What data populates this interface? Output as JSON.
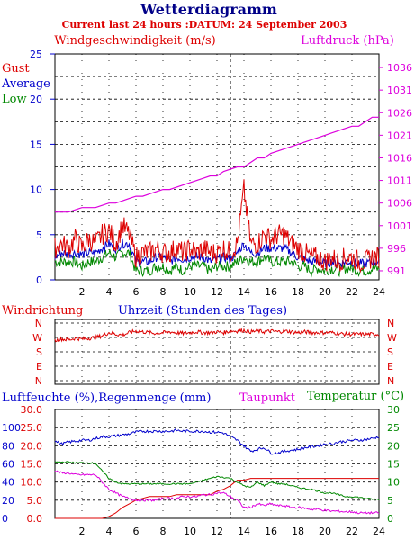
{
  "chart_data": [
    {
      "type": "line",
      "title": "Wetterdiagramm",
      "subtitle": "Current last 24 hours :DATUM: 24 September 2003",
      "ylabel_left": "Windgeschwindigkeit (m/s)",
      "ylabel_right": "Luftdruck (hPa)",
      "xlim": [
        0,
        24
      ],
      "ylim_left": [
        0,
        25
      ],
      "ylim_right": [
        989,
        1039
      ],
      "left_ticks": [
        "0",
        "5",
        "10",
        "15",
        "20",
        "25"
      ],
      "right_ticks": [
        "991",
        "996",
        "1001",
        "1006",
        "1011",
        "1016",
        "1021",
        "1026",
        "1031",
        "1036"
      ],
      "legend": [
        "Gust",
        "Average",
        "Low"
      ],
      "colors": {
        "gust": "#dd0000",
        "average": "#0000cc",
        "low": "#008800",
        "pressure": "#dd00dd"
      },
      "x": [
        0,
        0.5,
        1,
        1.5,
        2,
        2.5,
        3,
        3.5,
        4,
        4.5,
        5,
        5.5,
        6,
        6.5,
        7,
        7.5,
        8,
        8.5,
        9,
        9.5,
        10,
        10.5,
        11,
        11.5,
        12,
        12.5,
        13,
        13.5,
        14,
        14.5,
        15,
        15.5,
        16,
        16.5,
        17,
        17.5,
        18,
        18.5,
        19,
        19.5,
        20,
        20.5,
        21,
        21.5,
        22,
        22.5,
        23,
        23.5,
        24
      ],
      "series": [
        {
          "name": "Gust",
          "values": [
            3.5,
            4,
            3.5,
            4.5,
            3.5,
            4.5,
            4,
            5,
            5.5,
            4,
            6,
            5,
            2.5,
            3,
            3,
            3.5,
            3,
            3,
            3.5,
            3,
            3.5,
            3,
            3.5,
            3,
            3,
            3.5,
            3,
            4,
            10,
            4,
            4,
            5,
            4.5,
            5,
            5,
            4,
            3.5,
            3,
            2.5,
            2.5,
            2,
            2.5,
            2,
            2.5,
            2.5,
            2,
            2,
            2.5,
            2.5
          ]
        },
        {
          "name": "Average",
          "values": [
            2.5,
            3,
            2.8,
            3,
            2.8,
            3,
            3,
            3.5,
            4,
            3.5,
            4,
            4,
            2,
            2,
            2,
            2.5,
            2.5,
            2,
            2.5,
            2.3,
            2.5,
            2.5,
            2.5,
            2,
            2.3,
            2.5,
            2.3,
            3,
            4,
            3,
            3,
            3.5,
            3.5,
            3.5,
            3.5,
            3,
            2.5,
            2.3,
            2,
            2,
            1.8,
            2,
            1.8,
            2,
            2,
            1.8,
            1.8,
            2,
            2
          ]
        },
        {
          "name": "Low",
          "values": [
            2,
            2,
            2,
            2,
            1.5,
            2,
            2,
            2.5,
            3,
            2.5,
            3,
            3,
            1,
            1,
            1,
            1.5,
            1.5,
            1,
            1.5,
            1,
            1.5,
            1.5,
            1.5,
            1,
            1.5,
            1.5,
            1.5,
            2,
            2.5,
            2,
            2,
            2.5,
            2,
            2,
            2,
            2,
            1.5,
            1.5,
            1,
            1.3,
            1,
            1.3,
            1,
            1.3,
            1.3,
            1,
            1,
            1.2,
            1.2
          ]
        },
        {
          "name": "Luftdruck",
          "values": [
            1004,
            1004,
            1004,
            1004.5,
            1005,
            1005,
            1005,
            1005.5,
            1006,
            1006,
            1006.5,
            1007,
            1007.5,
            1007.5,
            1008,
            1008.5,
            1009,
            1009,
            1009.5,
            1010,
            1010.5,
            1011,
            1011.5,
            1012,
            1012,
            1013,
            1013.5,
            1014,
            1014,
            1015,
            1016,
            1016,
            1017,
            1017.5,
            1018,
            1018.5,
            1019,
            1019.5,
            1020,
            1020.5,
            1021,
            1021.5,
            1022,
            1022.5,
            1023,
            1023,
            1024,
            1025,
            1025
          ]
        }
      ]
    },
    {
      "type": "line",
      "ylabel": "Windrichtung",
      "xlabel": "Uhrzeit (Stunden des Tages)",
      "xlim": [
        0,
        24
      ],
      "direction_ticks": [
        "N",
        "W",
        "S",
        "E",
        "N"
      ],
      "x_ticks": [
        "2",
        "4",
        "6",
        "8",
        "10",
        "12",
        "14",
        "16",
        "18",
        "20",
        "22",
        "24"
      ],
      "x": [
        0,
        0.5,
        1,
        1.5,
        2,
        2.5,
        3,
        3.5,
        4,
        4.5,
        5,
        5.5,
        6,
        6.5,
        7,
        7.5,
        8,
        8.5,
        9,
        9.5,
        10,
        10.5,
        11,
        11.5,
        12,
        12.5,
        13,
        13.5,
        14,
        14.5,
        15,
        15.5,
        16,
        16.5,
        17,
        17.5,
        18,
        18.5,
        19,
        19.5,
        20,
        20.5,
        21,
        21.5,
        22,
        22.5,
        23,
        23.5,
        24
      ],
      "series": [
        {
          "name": "Windrichtung",
          "values": [
            250,
            260,
            255,
            265,
            260,
            265,
            270,
            280,
            300,
            290,
            285,
            300,
            310,
            305,
            300,
            295,
            300,
            305,
            300,
            295,
            300,
            305,
            300,
            300,
            305,
            300,
            310,
            310,
            315,
            305,
            310,
            305,
            310,
            305,
            310,
            305,
            300,
            305,
            300,
            300,
            300,
            300,
            295,
            290,
            290,
            290,
            290,
            290,
            290
          ]
        }
      ]
    },
    {
      "type": "line",
      "ylabel_left": "Luftfeuchte (%),Regenmenge (mm)",
      "series_labels": [
        "Taupunkt",
        "Temperatur (°C)"
      ],
      "xlim": [
        0,
        24
      ],
      "humidity_ticks": [
        "0",
        "20",
        "40",
        "60",
        "80",
        "100"
      ],
      "rain_ticks": [
        "0.0",
        "5.0",
        "10.0",
        "15.0",
        "20.0",
        "25.0",
        "30.0"
      ],
      "temp_ticks": [
        "0",
        "5",
        "10",
        "15",
        "20",
        "25",
        "30"
      ],
      "x_ticks": [
        "2",
        "4",
        "6",
        "8",
        "10",
        "12",
        "14",
        "16",
        "18",
        "20",
        "22",
        "24"
      ],
      "colors": {
        "humidity": "#0000cc",
        "rain": "#dd0000",
        "dewpoint": "#dd00dd",
        "temperature": "#008800"
      },
      "x": [
        0,
        0.5,
        1,
        1.5,
        2,
        2.5,
        3,
        3.5,
        4,
        4.5,
        5,
        5.5,
        6,
        6.5,
        7,
        7.5,
        8,
        8.5,
        9,
        9.5,
        10,
        10.5,
        11,
        11.5,
        12,
        12.5,
        13,
        13.5,
        14,
        14.5,
        15,
        15.5,
        16,
        16.5,
        17,
        17.5,
        18,
        18.5,
        19,
        19.5,
        20,
        20.5,
        21,
        21.5,
        22,
        22.5,
        23,
        23.5,
        24
      ],
      "series": [
        {
          "name": "Luftfeuchte",
          "values": [
            85,
            82,
            84,
            85,
            86,
            86,
            88,
            90,
            90,
            91,
            92,
            93,
            95,
            96,
            96,
            96,
            96,
            96,
            97,
            96,
            96,
            96,
            96,
            95,
            95,
            94,
            90,
            86,
            80,
            74,
            76,
            78,
            72,
            72,
            74,
            75,
            76,
            78,
            79,
            80,
            82,
            82,
            84,
            85,
            86,
            86,
            87,
            88,
            90
          ]
        },
        {
          "name": "Regenmenge",
          "values": [
            0,
            0,
            0,
            0,
            0,
            0,
            0,
            0,
            0.5,
            1.5,
            3,
            4,
            5,
            5.5,
            6,
            6,
            6,
            6,
            6.5,
            6.5,
            6.5,
            6.5,
            6.5,
            6.5,
            7.5,
            8,
            9,
            10.5,
            10.5,
            11,
            11,
            11,
            11,
            11,
            11,
            11,
            11,
            11,
            11,
            11,
            11,
            11,
            11,
            11,
            11,
            11,
            11,
            11,
            11
          ]
        },
        {
          "name": "Taupunkt",
          "values": [
            13,
            12.5,
            12.5,
            12,
            12,
            12,
            12,
            10,
            8,
            7,
            6,
            5.5,
            5,
            5,
            5,
            5,
            5.5,
            5.5,
            5.5,
            6,
            6,
            6,
            6.5,
            6.5,
            7,
            7,
            6,
            5,
            3,
            3,
            4,
            3.5,
            4,
            3.5,
            3.5,
            3,
            3,
            2.8,
            2.5,
            2.5,
            2.2,
            2,
            2,
            1.8,
            1.8,
            1.5,
            1.5,
            1.5,
            1.5
          ]
        },
        {
          "name": "Temperatur",
          "values": [
            15.5,
            15.5,
            15.5,
            15.3,
            15.3,
            15.3,
            15.2,
            13,
            11,
            10,
            9.5,
            9.5,
            9.5,
            9.5,
            9.5,
            9.5,
            9.5,
            9.5,
            9.5,
            9.5,
            9.5,
            10,
            10.5,
            11,
            11.5,
            11.3,
            11,
            10,
            9,
            8.5,
            10,
            9,
            10,
            9.5,
            9.5,
            9,
            8.5,
            8.2,
            8,
            7.5,
            7,
            7,
            6.5,
            6,
            6,
            5.8,
            5.5,
            5.3,
            5.2
          ]
        }
      ]
    }
  ]
}
